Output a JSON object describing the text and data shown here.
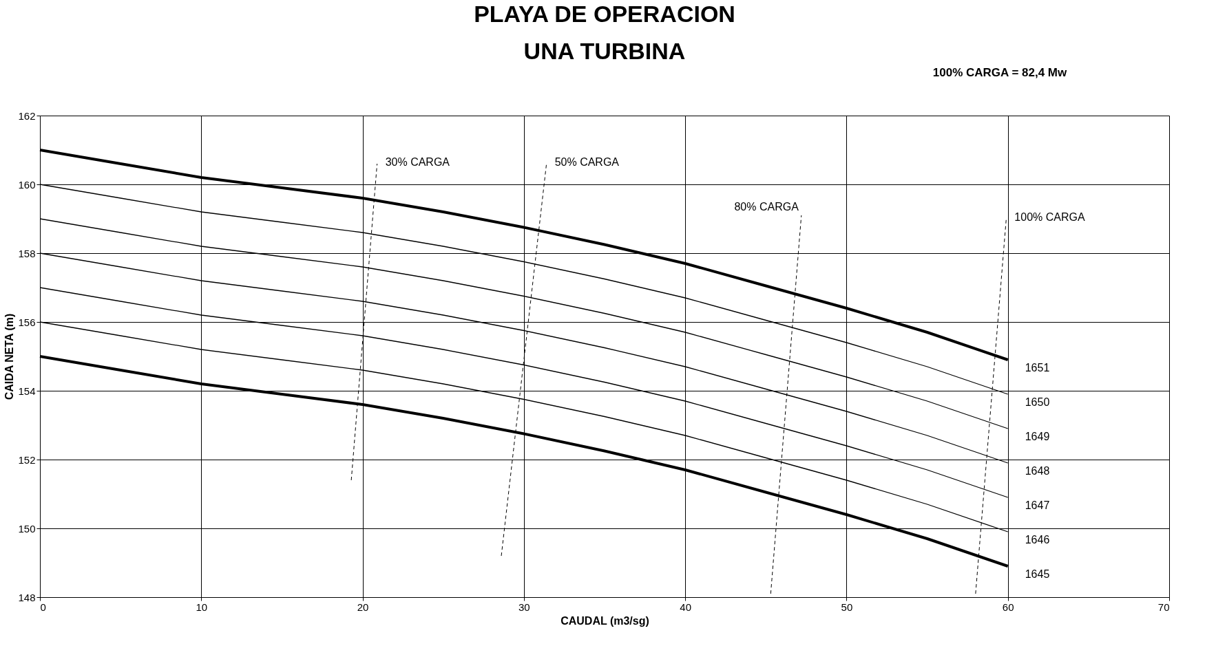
{
  "chart_data": {
    "type": "line",
    "title": "PLAYA DE OPERACION",
    "subtitle": "UNA TURBINA",
    "xlabel": "CAUDAL (m3/sg)",
    "ylabel": "CAIDA NETA (m)",
    "annotations": [
      "100%  CARGA  =  82,4 Mw"
    ],
    "x": [
      0,
      5,
      10,
      15,
      20,
      25,
      30,
      35,
      40,
      45,
      50,
      55,
      60
    ],
    "series": [
      {
        "name": "1651",
        "color": "#000000",
        "values": [
          161,
          160.6,
          160.2,
          159.9,
          159.6,
          159.2,
          158.75,
          158.25,
          157.7,
          157.05,
          156.4,
          155.7,
          154.9
        ]
      },
      {
        "name": "1650",
        "color": "#000000",
        "values": [
          160,
          159.6,
          159.2,
          158.9,
          158.6,
          158.2,
          157.75,
          157.25,
          156.7,
          156.05,
          155.4,
          154.7,
          153.9
        ]
      },
      {
        "name": "1649",
        "color": "#000000",
        "values": [
          159,
          158.6,
          158.2,
          157.9,
          157.6,
          157.2,
          156.75,
          156.25,
          155.7,
          155.05,
          154.4,
          153.7,
          152.9
        ]
      },
      {
        "name": "1648",
        "color": "#000000",
        "values": [
          158,
          157.6,
          157.2,
          156.9,
          156.6,
          156.2,
          155.75,
          155.25,
          154.7,
          154.05,
          153.4,
          152.7,
          151.9
        ]
      },
      {
        "name": "1647",
        "color": "#000000",
        "values": [
          157,
          156.6,
          156.2,
          155.9,
          155.6,
          155.2,
          154.75,
          154.25,
          153.7,
          153.05,
          152.4,
          151.7,
          150.9
        ]
      },
      {
        "name": "1646",
        "color": "#000000",
        "values": [
          156,
          155.6,
          155.2,
          154.9,
          154.6,
          154.2,
          153.75,
          153.25,
          152.7,
          152.05,
          151.4,
          150.7,
          149.9
        ]
      },
      {
        "name": "1645",
        "color": "#000000",
        "values": [
          155,
          154.6,
          154.2,
          153.9,
          153.6,
          153.2,
          152.75,
          152.25,
          151.7,
          151.05,
          150.4,
          149.7,
          148.9
        ]
      },
      {
        "name": "30% CARGA",
        "color": "#000000",
        "line_style": "dashed",
        "x": [
          19.3,
          20.9
        ],
        "values": [
          151.4,
          160.6
        ]
      },
      {
        "name": "50% CARGA",
        "color": "#000000",
        "line_style": "dashed",
        "x": [
          28.6,
          31.4
        ],
        "values": [
          149.2,
          160.6
        ]
      },
      {
        "name": "80% CARGA",
        "color": "#000000",
        "line_style": "dashed",
        "x": [
          45.3,
          47.2
        ],
        "values": [
          148.1,
          159.1
        ]
      },
      {
        "name": "100% CARGA",
        "color": "#000000",
        "line_style": "dashed",
        "x": [
          58.0,
          59.9
        ],
        "values": [
          148.1,
          159.0
        ]
      }
    ],
    "xlim": [
      0,
      70
    ],
    "xticks": [
      0,
      10,
      20,
      30,
      40,
      50,
      60,
      70
    ],
    "ylim": [
      148,
      162
    ],
    "yticks": [
      148,
      150,
      152,
      154,
      156,
      158,
      160,
      162
    ],
    "grid": true,
    "marker": "none",
    "line_style": "solid"
  }
}
